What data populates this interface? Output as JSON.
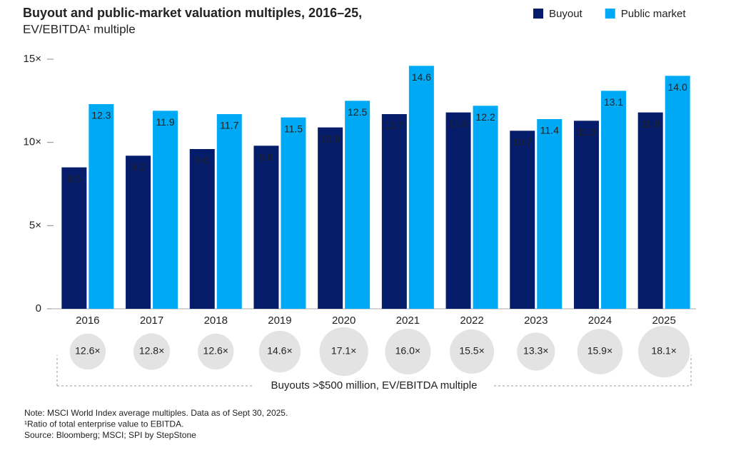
{
  "chart_data": {
    "type": "bar",
    "title": "Buyout and public-market valuation multiples, 2016–25,",
    "subtitle": "EV/EBITDA¹ multiple",
    "categories": [
      "2016",
      "2017",
      "2018",
      "2019",
      "2020",
      "2021",
      "2022",
      "2023",
      "2024",
      "2025"
    ],
    "series": [
      {
        "name": "Buyout",
        "color": "#051c6b",
        "values": [
          8.5,
          9.2,
          9.6,
          9.8,
          10.9,
          11.7,
          11.8,
          10.7,
          11.3,
          11.8
        ]
      },
      {
        "name": "Public market",
        "color": "#00a9f4",
        "values": [
          12.3,
          11.9,
          11.7,
          11.5,
          12.5,
          14.6,
          12.2,
          11.4,
          13.1,
          14.0
        ],
        "value_labels": [
          "12.3",
          "11.9",
          "11.7",
          "11.5",
          "12.5",
          "14.6",
          "12.2",
          "11.4",
          "13.1",
          "14.0"
        ]
      }
    ],
    "ylim": [
      0,
      15
    ],
    "yticks": [
      0,
      {
        "value": 5,
        "label": "5×"
      },
      {
        "value": 10,
        "label": "10×"
      },
      {
        "value": 15,
        "label": "15×"
      }
    ],
    "legend": "top-right",
    "large_buyouts": {
      "label": "Buyouts >$500 million, EV/EBITDA multiple",
      "color": "#e3e3e3",
      "values": [
        12.6,
        12.8,
        12.6,
        14.6,
        17.1,
        16.0,
        15.5,
        13.3,
        15.9,
        18.1
      ],
      "value_labels": [
        "12.6×",
        "12.8×",
        "12.6×",
        "14.6×",
        "17.1×",
        "16.0×",
        "15.5×",
        "13.3×",
        "15.9×",
        "18.1×"
      ]
    },
    "notes": [
      "Note: MSCI World Index average multiples. Data as of Sept 30, 2025.",
      "¹Ratio of total enterprise value to EBITDA.",
      "Source: Bloomberg; MSCI; SPI by StepStone"
    ]
  }
}
